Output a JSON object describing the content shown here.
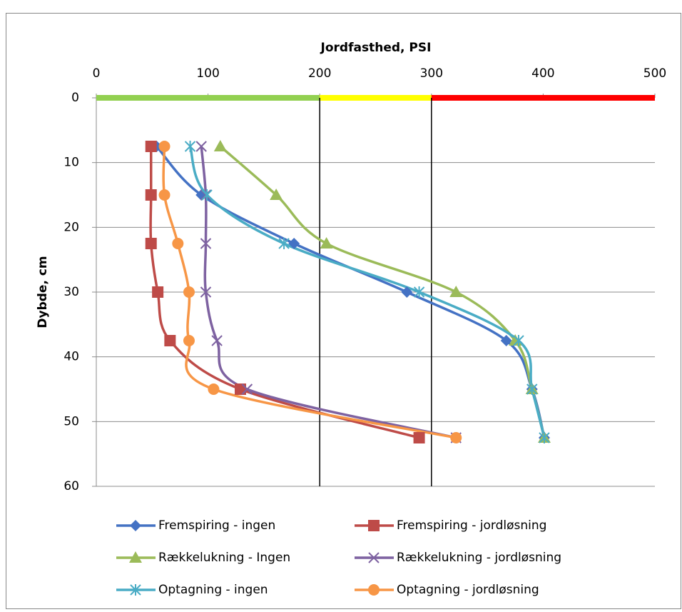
{
  "chart_data": {
    "type": "line",
    "title": "Jordfasthed, PSI",
    "y_label": "Dybde, cm",
    "y": [
      7.5,
      15,
      22.5,
      30,
      37.5,
      45,
      52.5
    ],
    "series": [
      {
        "name": "Fremspiring - ingen",
        "color": "#4472c4",
        "marker": "diamond",
        "x": [
          54,
          94,
          177,
          278,
          367,
          390,
          401
        ]
      },
      {
        "name": "Fremspiring - jordløsning",
        "color": "#be4b48",
        "marker": "square",
        "x": [
          49,
          49,
          49,
          55,
          66,
          129,
          289
        ]
      },
      {
        "name": "Rækkelukning - Ingen",
        "color": "#9bbb59",
        "marker": "triangle",
        "x": [
          111,
          161,
          206,
          322,
          375,
          390,
          401
        ]
      },
      {
        "name": "Rækkelukning - jordløsning",
        "color": "#7e62a1",
        "marker": "x",
        "x": [
          94,
          98,
          98,
          98,
          108,
          135,
          322
        ]
      },
      {
        "name": "Optagning - ingen",
        "color": "#4aacc5",
        "marker": "star",
        "x": [
          84,
          99,
          168,
          289,
          378,
          390,
          401
        ]
      },
      {
        "name": "Optagning - jordløsning",
        "color": "#f79646",
        "marker": "circle",
        "x": [
          61,
          61,
          73,
          83,
          83,
          105,
          322
        ]
      }
    ],
    "xlim": [
      0,
      500
    ],
    "xticks": [
      0,
      100,
      200,
      300,
      400,
      500
    ],
    "ylim": [
      0,
      60
    ],
    "yticks": [
      0,
      10,
      20,
      30,
      40,
      50,
      60
    ],
    "y_inverted": true,
    "x_axis_position": "top",
    "grid": true,
    "zones": [
      {
        "from": 0,
        "to": 200,
        "color": "#92d050"
      },
      {
        "from": 200,
        "to": 300,
        "color": "#ffff00"
      },
      {
        "from": 300,
        "to": 500,
        "color": "#ff0000"
      }
    ],
    "reference_lines": [
      200,
      300
    ],
    "legend": "bottom"
  }
}
